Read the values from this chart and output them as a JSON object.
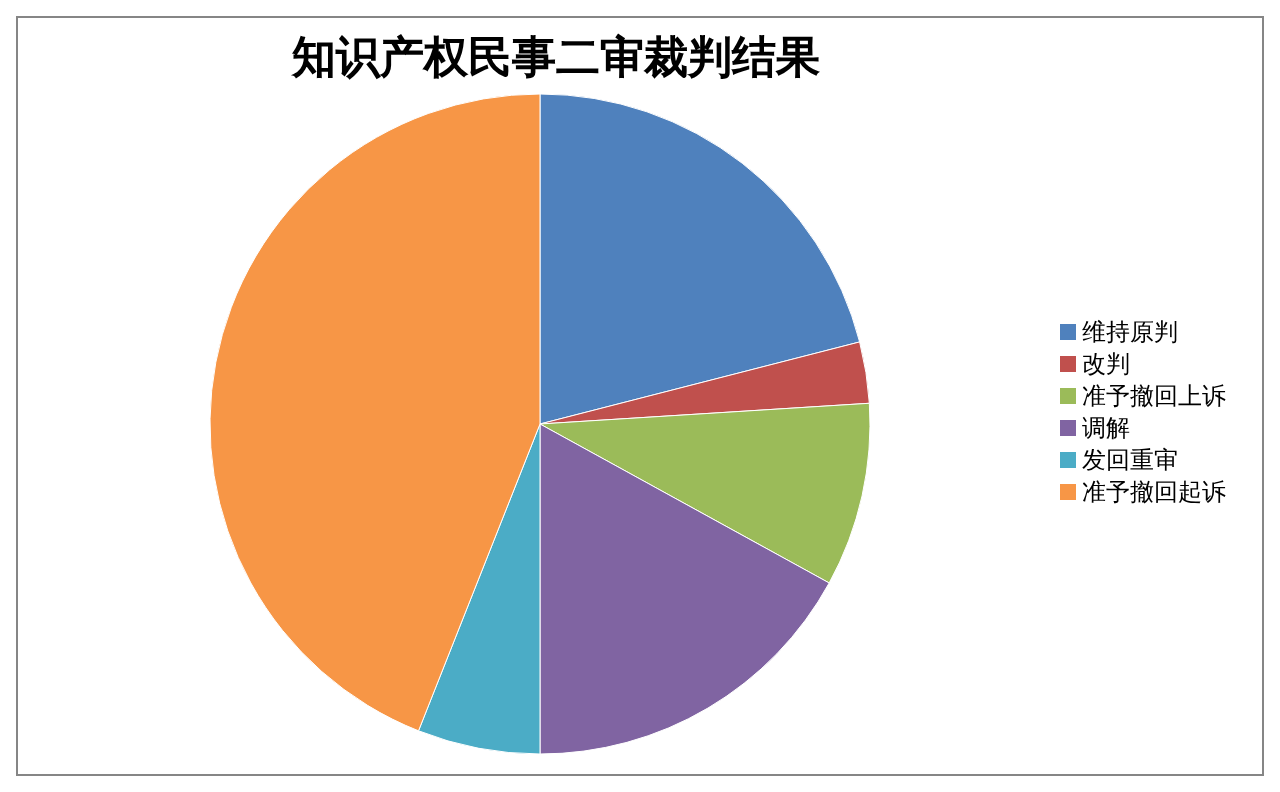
{
  "chart_data": {
    "type": "pie",
    "title": "知识产权民事二审裁判结果",
    "categories": [
      "维持原判",
      "改判",
      "准予撤回上诉",
      "调解",
      "发回重审",
      "准予撤回起诉"
    ],
    "values": [
      21,
      3,
      9,
      17,
      6,
      44
    ],
    "colors": [
      "#4f81bd",
      "#c0504d",
      "#9bbb59",
      "#8064a2",
      "#4bacc6",
      "#f79646"
    ],
    "legend": "right"
  }
}
